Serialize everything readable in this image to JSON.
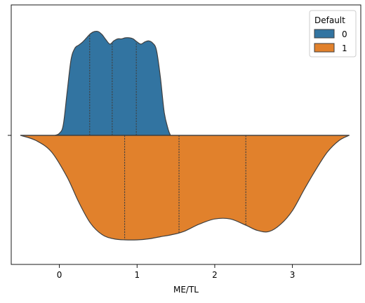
{
  "chart_data": {
    "type": "violin",
    "orientation": "horizontal",
    "split": true,
    "inner": "quartile",
    "xlabel": "ME/TL",
    "ylabel": "",
    "xlim": [
      -0.62,
      3.88
    ],
    "xticks": [
      0,
      1,
      2,
      3
    ],
    "xtick_labels": [
      "0",
      "1",
      "2",
      "3"
    ],
    "ytick_labels": [
      ""
    ],
    "legend": {
      "title": "Default",
      "placement": "top-right"
    },
    "series": [
      {
        "name": "0",
        "side": "upper",
        "color": "#3274a1",
        "range": [
          -0.06,
          1.43
        ],
        "quartiles": [
          0.39,
          0.68,
          0.99
        ],
        "density": [
          [
            -0.06,
            0.0
          ],
          [
            0.0,
            0.02
          ],
          [
            0.05,
            0.1
          ],
          [
            0.1,
            0.42
          ],
          [
            0.15,
            0.73
          ],
          [
            0.2,
            0.84
          ],
          [
            0.25,
            0.87
          ],
          [
            0.3,
            0.9
          ],
          [
            0.35,
            0.94
          ],
          [
            0.4,
            0.98
          ],
          [
            0.45,
            1.0
          ],
          [
            0.5,
            1.0
          ],
          [
            0.55,
            0.97
          ],
          [
            0.6,
            0.92
          ],
          [
            0.65,
            0.88
          ],
          [
            0.7,
            0.91
          ],
          [
            0.75,
            0.93
          ],
          [
            0.8,
            0.93
          ],
          [
            0.85,
            0.94
          ],
          [
            0.9,
            0.94
          ],
          [
            0.95,
            0.93
          ],
          [
            1.0,
            0.9
          ],
          [
            1.05,
            0.88
          ],
          [
            1.1,
            0.9
          ],
          [
            1.15,
            0.91
          ],
          [
            1.2,
            0.89
          ],
          [
            1.25,
            0.82
          ],
          [
            1.3,
            0.56
          ],
          [
            1.35,
            0.22
          ],
          [
            1.4,
            0.06
          ],
          [
            1.43,
            0.0
          ]
        ]
      },
      {
        "name": "1",
        "side": "lower",
        "color": "#e1812c",
        "range": [
          -0.5,
          3.73
        ],
        "quartiles": [
          0.84,
          1.54,
          2.4
        ],
        "density": [
          [
            -0.5,
            0.0
          ],
          [
            -0.3,
            0.05
          ],
          [
            -0.1,
            0.16
          ],
          [
            0.1,
            0.4
          ],
          [
            0.25,
            0.64
          ],
          [
            0.4,
            0.84
          ],
          [
            0.55,
            0.95
          ],
          [
            0.7,
            0.99
          ],
          [
            0.85,
            1.0
          ],
          [
            1.0,
            1.0
          ],
          [
            1.15,
            0.99
          ],
          [
            1.3,
            0.97
          ],
          [
            1.45,
            0.95
          ],
          [
            1.6,
            0.92
          ],
          [
            1.8,
            0.85
          ],
          [
            2.0,
            0.8
          ],
          [
            2.2,
            0.8
          ],
          [
            2.4,
            0.86
          ],
          [
            2.55,
            0.91
          ],
          [
            2.7,
            0.92
          ],
          [
            2.85,
            0.85
          ],
          [
            3.0,
            0.72
          ],
          [
            3.15,
            0.52
          ],
          [
            3.3,
            0.33
          ],
          [
            3.45,
            0.16
          ],
          [
            3.6,
            0.05
          ],
          [
            3.73,
            0.0
          ]
        ]
      }
    ]
  },
  "legend": {
    "title": "Default",
    "items": [
      "0",
      "1"
    ]
  },
  "axes": {
    "xlabel": "ME/TL"
  }
}
